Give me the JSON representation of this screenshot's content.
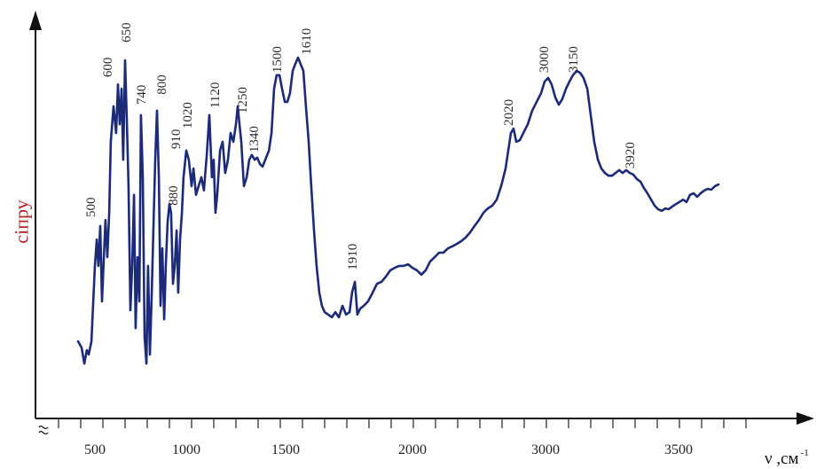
{
  "chart_data": {
    "type": "line",
    "title": "",
    "xlabel": "ν ,см",
    "xlabel_sup": "-1",
    "ylabel": "сіпру",
    "ylim": [
      0,
      100
    ],
    "grid": false,
    "line_color": "#1c2a7a",
    "ylabel_color": "#b32424",
    "x_ticks": [
      500,
      1000,
      1500,
      2000,
      3000,
      3500
    ],
    "series": [
      {
        "x": [
          408,
          427,
          442,
          456,
          466,
          481,
          490,
          500,
          510,
          519,
          529,
          539,
          549,
          558,
          568,
          578,
          587,
          602,
          616,
          626,
          636,
          646,
          655,
          665,
          675,
          684,
          694,
          704,
          714,
          723,
          733,
          743,
          752,
          762,
          772,
          782,
          791,
          801,
          811,
          820,
          830,
          840,
          850,
          859,
          869,
          879,
          888,
          898,
          908,
          917,
          927,
          937,
          947,
          956,
          966,
          976,
          985,
          1000,
          1013,
          1027,
          1036,
          1049,
          1062,
          1076,
          1089,
          1103,
          1116,
          1129,
          1138,
          1147,
          1156,
          1170,
          1183,
          1196,
          1210,
          1223,
          1237,
          1250,
          1259,
          1268,
          1277,
          1290,
          1304,
          1317,
          1330,
          1344,
          1357,
          1371,
          1384,
          1402,
          1416,
          1429,
          1442,
          1455,
          1469,
          1482,
          1496,
          1507,
          1517,
          1528,
          1538,
          1549,
          1559,
          1570,
          1580,
          1591,
          1601,
          1612,
          1622,
          1633,
          1643,
          1654,
          1668,
          1682,
          1696,
          1710,
          1724,
          1738,
          1752,
          1762,
          1773,
          1783,
          1794,
          1808,
          1825,
          1843,
          1860,
          1878,
          1895,
          1913,
          1930,
          1948,
          1965,
          1983,
          2000,
          2033,
          2067,
          2100,
          2133,
          2167,
          2200,
          2233,
          2267,
          2300,
          2333,
          2367,
          2400,
          2433,
          2467,
          2500,
          2533,
          2567,
          2600,
          2633,
          2667,
          2700,
          2720,
          2740,
          2760,
          2780,
          2807,
          2833,
          2867,
          2900,
          2933,
          2967,
          2993,
          3010,
          3023,
          3037,
          3050,
          3063,
          3077,
          3090,
          3103,
          3117,
          3130,
          3143,
          3157,
          3170,
          3183,
          3197,
          3210,
          3223,
          3237,
          3250,
          3263,
          3277,
          3290,
          3303,
          3317,
          3330,
          3343,
          3357,
          3370,
          3383,
          3397,
          3410,
          3423,
          3437,
          3450,
          3463,
          3477,
          3490,
          3503,
          3517,
          3530,
          3543,
          3557,
          3570,
          3583,
          3597,
          3610,
          3623,
          3637,
          3650
        ],
        "y": [
          18.9,
          17.3,
          13.3,
          16.7,
          15.6,
          18.9,
          27.8,
          37.8,
          44.4,
          37.8,
          47.8,
          28.9,
          40.0,
          49.3,
          40.0,
          51.1,
          68.9,
          77.8,
          71.1,
          83.3,
          73.3,
          82.2,
          64.4,
          89.3,
          73.3,
          57.8,
          26.7,
          37.8,
          55.6,
          22.2,
          40.0,
          28.9,
          75.6,
          60.0,
          20.0,
          13.3,
          37.8,
          15.6,
          31.1,
          46.7,
          64.4,
          76.7,
          60.0,
          27.8,
          42.2,
          24.4,
          37.8,
          48.9,
          53.3,
          51.1,
          33.3,
          37.8,
          46.7,
          31.1,
          44.4,
          51.1,
          60.0,
          66.7,
          64.4,
          57.8,
          62.2,
          55.6,
          57.8,
          60.0,
          56.7,
          65.6,
          75.6,
          60.0,
          64.4,
          51.1,
          55.6,
          66.7,
          68.9,
          61.1,
          64.4,
          71.1,
          68.9,
          73.3,
          77.8,
          73.3,
          68.9,
          57.8,
          60.0,
          64.4,
          65.6,
          64.4,
          64.9,
          63.3,
          62.7,
          64.9,
          66.7,
          71.1,
          82.2,
          85.6,
          85.6,
          82.2,
          78.9,
          78.9,
          81.1,
          86.7,
          88.4,
          90.0,
          88.4,
          86.7,
          77.8,
          68.9,
          57.8,
          46.7,
          37.8,
          31.1,
          27.8,
          26.2,
          25.6,
          24.9,
          26.2,
          24.9,
          27.8,
          25.6,
          26.2,
          31.1,
          33.8,
          25.6,
          27.1,
          27.8,
          28.9,
          31.1,
          33.3,
          33.8,
          35.1,
          36.7,
          37.3,
          37.8,
          37.8,
          38.2,
          37.3,
          36.7,
          35.6,
          36.7,
          38.9,
          40.0,
          41.1,
          41.1,
          42.2,
          42.7,
          43.3,
          44.0,
          44.9,
          46.2,
          47.8,
          49.3,
          51.1,
          52.2,
          52.9,
          54.4,
          57.8,
          62.2,
          66.7,
          71.1,
          72.2,
          68.9,
          69.3,
          71.1,
          73.3,
          76.7,
          78.9,
          81.1,
          84.0,
          84.9,
          83.3,
          80.0,
          78.2,
          79.6,
          82.2,
          84.0,
          85.6,
          86.7,
          86.2,
          84.9,
          82.2,
          75.6,
          68.9,
          64.4,
          62.2,
          61.1,
          60.4,
          60.4,
          61.1,
          61.8,
          61.1,
          61.8,
          61.1,
          60.7,
          59.6,
          58.9,
          57.3,
          56.0,
          54.4,
          52.9,
          52.0,
          51.6,
          52.2,
          52.0,
          52.7,
          53.3,
          53.8,
          54.4,
          53.8,
          55.6,
          56.0,
          55.1,
          56.0,
          56.7,
          57.1,
          56.9,
          57.8,
          58.2
        ]
      }
    ],
    "annotations": [
      {
        "label": "500",
        "x": 481,
        "y": 50.0
      },
      {
        "label": "600",
        "x": 573,
        "y": 85.1
      },
      {
        "label": "650",
        "x": 675,
        "y": 93.8
      },
      {
        "label": "740",
        "x": 757,
        "y": 78.2
      },
      {
        "label": "800",
        "x": 869,
        "y": 80.7
      },
      {
        "label": "880",
        "x": 932,
        "y": 52.9
      },
      {
        "label": "910",
        "x": 947,
        "y": 67.1
      },
      {
        "label": "1020",
        "x": 1009,
        "y": 72.2
      },
      {
        "label": "1120",
        "x": 1147,
        "y": 77.3
      },
      {
        "label": "1250",
        "x": 1286,
        "y": 76.0
      },
      {
        "label": "1340",
        "x": 1344,
        "y": 66.2
      },
      {
        "label": "1500",
        "x": 1460,
        "y": 86.2
      },
      {
        "label": "1610",
        "x": 1584,
        "y": 90.7
      },
      {
        "label": "1910",
        "x": 1766,
        "y": 36.7
      },
      {
        "label": "2020",
        "x": 2727,
        "y": 72.9
      },
      {
        "label": "3000",
        "x": 2993,
        "y": 86.2
      },
      {
        "label": "3150",
        "x": 3107,
        "y": 86.2
      },
      {
        "label": "3920",
        "x": 3320,
        "y": 62.2
      }
    ]
  }
}
